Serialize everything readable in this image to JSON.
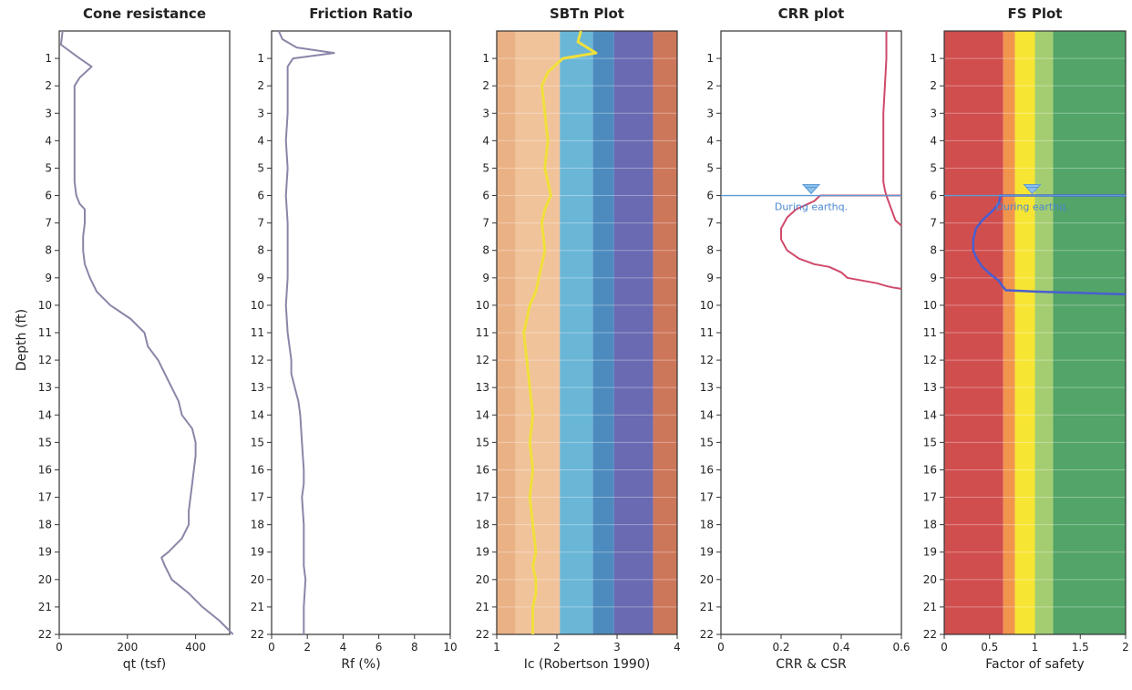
{
  "y_axis_label": "Depth (ft)",
  "depth_ticks": [
    1,
    2,
    3,
    4,
    5,
    6,
    7,
    8,
    9,
    10,
    11,
    12,
    13,
    14,
    15,
    16,
    17,
    18,
    19,
    20,
    21,
    22
  ],
  "water_table": {
    "depth": 6,
    "label": "During earthq."
  },
  "colors": {
    "line": "#8a86a8",
    "ic_line": "#f0e03c",
    "crr_line": "#d04a6a",
    "fs_line": "#4a5ed0",
    "water": "#5b9ad6"
  },
  "chart_data": [
    {
      "type": "line",
      "title": "Cone resistance",
      "xlabel": "qt (tsf)",
      "xlim": [
        0,
        500
      ],
      "xticks": [
        0,
        200,
        400
      ],
      "ylim": [
        0,
        22
      ],
      "series": [
        {
          "x": [
            10,
            5,
            60,
            95,
            60,
            45,
            45,
            45,
            45,
            45,
            50,
            60,
            75,
            75,
            70,
            70,
            75,
            90,
            110,
            150,
            210,
            250,
            260,
            290,
            310,
            330,
            350,
            360,
            390,
            400,
            400,
            395,
            390,
            385,
            380,
            380,
            360,
            320,
            300,
            310,
            330,
            380,
            420,
            470,
            510
          ],
          "y": [
            0,
            0.5,
            1,
            1.3,
            1.7,
            2,
            3,
            4,
            5,
            5.5,
            6,
            6.3,
            6.5,
            7,
            7.5,
            8,
            8.5,
            9,
            9.5,
            10,
            10.5,
            11,
            11.5,
            12,
            12.5,
            13,
            13.5,
            14,
            14.5,
            15,
            15.5,
            16,
            16.5,
            17,
            17.5,
            18,
            18.5,
            19,
            19.2,
            19.5,
            20,
            20.5,
            21,
            21.5,
            22
          ]
        }
      ]
    },
    {
      "type": "line",
      "title": "Friction Ratio",
      "xlabel": "Rf (%)",
      "xlim": [
        0,
        10
      ],
      "xticks": [
        0,
        2,
        4,
        6,
        8,
        10
      ],
      "ylim": [
        0,
        22
      ],
      "series": [
        {
          "x": [
            0.4,
            0.6,
            1.4,
            3.5,
            1.2,
            0.9,
            0.9,
            0.9,
            0.8,
            0.9,
            0.8,
            0.9,
            0.9,
            0.9,
            0.8,
            0.9,
            1.0,
            1.1,
            1.1,
            1.3,
            1.5,
            1.6,
            1.7,
            1.8,
            1.8,
            1.7,
            1.8,
            1.8,
            1.8,
            1.9,
            1.8,
            1.8,
            1.8
          ],
          "y": [
            0,
            0.3,
            0.6,
            0.8,
            1,
            1.3,
            2,
            3,
            4,
            5,
            6,
            7,
            8,
            9,
            10,
            11,
            11.5,
            12,
            12.5,
            13,
            13.5,
            14,
            15,
            16,
            16.5,
            17,
            18,
            19,
            19.5,
            20,
            21,
            21.5,
            22
          ]
        }
      ]
    },
    {
      "type": "line",
      "title": "SBTn Plot",
      "xlabel": "Ic (Robertson 1990)",
      "xlim": [
        1,
        4
      ],
      "xticks": [
        1,
        2,
        3,
        4
      ],
      "ylim": [
        0,
        22
      ],
      "bands": [
        {
          "from": 1.0,
          "to": 1.31,
          "color": "#e8a878"
        },
        {
          "from": 1.31,
          "to": 2.05,
          "color": "#f0bc90"
        },
        {
          "from": 2.05,
          "to": 2.6,
          "color": "#5aaed2"
        },
        {
          "from": 2.6,
          "to": 2.95,
          "color": "#3a7eb8"
        },
        {
          "from": 2.95,
          "to": 3.6,
          "color": "#5a5aaa"
        },
        {
          "from": 3.6,
          "to": 4.0,
          "color": "#c86848"
        }
      ],
      "series": [
        {
          "x": [
            2.4,
            2.35,
            2.65,
            2.1,
            1.85,
            1.75,
            1.8,
            1.85,
            1.8,
            1.85,
            1.9,
            1.8,
            1.75,
            1.8,
            1.75,
            1.7,
            1.65,
            1.55,
            1.5,
            1.45,
            1.5,
            1.55,
            1.6,
            1.55,
            1.6,
            1.55,
            1.6,
            1.65,
            1.6,
            1.65,
            1.65,
            1.6,
            1.6
          ],
          "y": [
            0,
            0.4,
            0.8,
            1,
            1.5,
            2,
            3,
            4,
            5,
            5.5,
            6,
            6.5,
            7,
            8,
            8.5,
            9,
            9.5,
            10,
            10.5,
            11,
            12,
            13,
            14,
            15,
            16,
            17,
            18,
            19,
            19.5,
            20,
            20.5,
            21,
            22
          ]
        }
      ]
    },
    {
      "type": "line",
      "title": "CRR plot",
      "xlabel": "CRR & CSR",
      "xlim": [
        0,
        0.6
      ],
      "xticks": [
        0,
        0.2,
        0.4,
        0.6
      ],
      "xtick_labels": [
        "0",
        "0.2",
        "0.4",
        "0.6"
      ],
      "ylim": [
        0,
        22
      ],
      "series": [
        {
          "x": [
            0.55,
            0.55,
            0.545,
            0.54,
            0.54,
            0.54,
            0.54,
            0.545,
            0.55,
            0.56,
            0.57,
            0.58,
            0.6
          ],
          "y": [
            0,
            1,
            2,
            3,
            4,
            5,
            5.5,
            5.8,
            6,
            6.3,
            6.6,
            6.9,
            7.1
          ]
        },
        {
          "x": [
            0.6,
            0.33,
            0.31,
            0.25,
            0.22,
            0.2,
            0.2,
            0.22,
            0.26,
            0.31,
            0.36,
            0.4,
            0.41,
            0.42,
            0.47,
            0.52,
            0.55,
            0.57,
            0.6
          ],
          "y": [
            6,
            6,
            6.2,
            6.5,
            6.8,
            7.2,
            7.6,
            8,
            8.3,
            8.5,
            8.6,
            8.8,
            8.9,
            9,
            9.1,
            9.2,
            9.3,
            9.35,
            9.4
          ]
        }
      ]
    },
    {
      "type": "line",
      "title": "FS Plot",
      "xlabel": "Factor of safety",
      "xlim": [
        0,
        2
      ],
      "xticks": [
        0,
        0.5,
        1,
        1.5,
        2
      ],
      "xtick_labels": [
        "0",
        "0.5",
        "1",
        "1.5",
        "2"
      ],
      "ylim": [
        0,
        22
      ],
      "bands": [
        {
          "from": 0.0,
          "to": 0.65,
          "color": "#cc3b3b"
        },
        {
          "from": 0.65,
          "to": 0.78,
          "color": "#ef8a3a"
        },
        {
          "from": 0.78,
          "to": 1.0,
          "color": "#f6e21e"
        },
        {
          "from": 1.0,
          "to": 1.2,
          "color": "#9ac862"
        },
        {
          "from": 1.2,
          "to": 2.0,
          "color": "#3f9a58"
        }
      ],
      "series": [
        {
          "x": [
            2,
            0.62,
            0.6,
            0.52,
            0.42,
            0.35,
            0.32,
            0.32,
            0.36,
            0.42,
            0.52,
            0.6,
            0.64,
            0.68,
            1.0,
            1.5,
            2
          ],
          "y": [
            6,
            6,
            6.3,
            6.6,
            6.9,
            7.2,
            7.6,
            8,
            8.3,
            8.6,
            8.9,
            9.1,
            9.3,
            9.45,
            9.5,
            9.55,
            9.6
          ]
        }
      ]
    }
  ]
}
